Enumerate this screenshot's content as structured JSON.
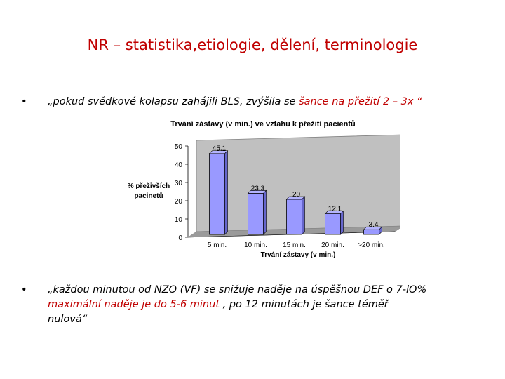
{
  "slide": {
    "title": "NR – statistika,etiologie, dělení, terminologie",
    "bullet_symbol": "•",
    "bullet1": {
      "prefix": "„pokud svědkové kolapsu zahájili BLS, zvýšila se ",
      "highlight": "šance na přežití 2 – 3x “"
    },
    "bullet2": {
      "line1": "„každou minutou od NZO (VF) se snižuje naděje na úspěšnou DEF o 7-lO%",
      "line2_highlight": " maximální naděje je do 5-6  minut",
      "line2_rest": " , po 12 minutách je šance téměř",
      "line3": "nulová“"
    }
  },
  "chart_data": {
    "type": "bar",
    "title": "Trvání zástavy (v min.) ve vztahu k přežití pacientů",
    "xlabel": "Trvání zástavy (v min.)",
    "ylabel": [
      "% přeživších",
      "pacinetů"
    ],
    "categories": [
      "5 min.",
      "10 min.",
      "15 min.",
      "20 min.",
      ">20 min."
    ],
    "values": [
      45.1,
      23.3,
      20,
      12.1,
      3.4
    ],
    "value_labels": [
      "45.1",
      "23.3",
      "20",
      "12.1",
      "3.4"
    ],
    "ylim": [
      0,
      50
    ],
    "yticks": [
      0,
      10,
      20,
      30,
      40,
      50
    ],
    "grid": false,
    "legend": "none",
    "colors": {
      "bar": "#9999ff",
      "plot_area": "#c0c0c0",
      "title": "#c00000"
    }
  }
}
